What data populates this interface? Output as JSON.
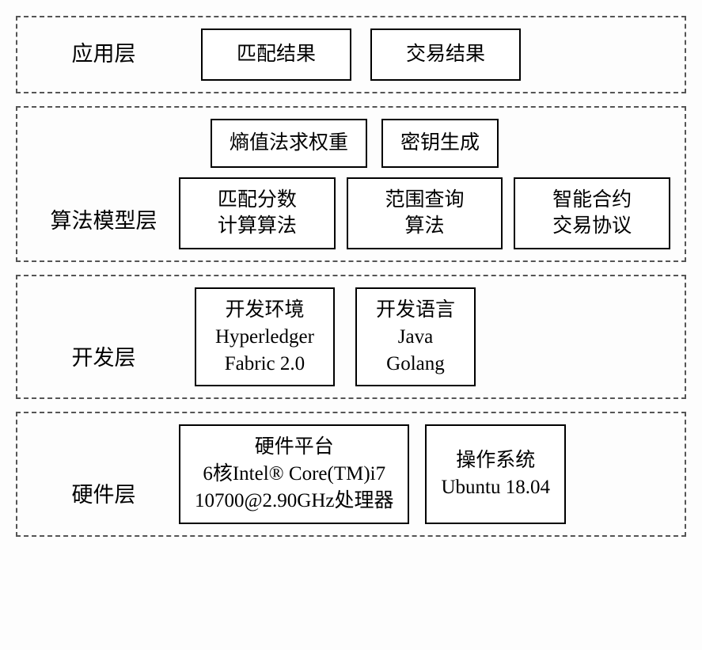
{
  "diagram": {
    "type": "layered-architecture",
    "background_color": "#fdfdfd",
    "layer_border_color": "#555555",
    "layer_border_style": "dashed",
    "box_border_color": "#000000",
    "box_background": "#ffffff",
    "font_family": "SimSun",
    "label_fontsize": 27,
    "box_fontsize": 25,
    "layers": [
      {
        "label": "应用层",
        "rows": [
          {
            "boxes": [
              "匹配结果",
              "交易结果"
            ]
          }
        ]
      },
      {
        "label": "算法模型层",
        "rows": [
          {
            "boxes": [
              "熵值法求权重",
              "密钥生成"
            ]
          },
          {
            "boxes": [
              "匹配分数\n计算算法",
              "范围查询\n算法",
              "智能合约\n交易协议"
            ]
          }
        ]
      },
      {
        "label": "开发层",
        "rows": [
          {
            "boxes": [
              "开发环境\nHyperledger\nFabric 2.0",
              "开发语言\nJava\nGolang"
            ]
          }
        ]
      },
      {
        "label": "硬件层",
        "rows": [
          {
            "boxes": [
              "硬件平台\n6核Intel® Core(TM)i7\n10700@2.90GHz处理器",
              "操作系统\nUbuntu 18.04"
            ]
          }
        ]
      }
    ]
  }
}
